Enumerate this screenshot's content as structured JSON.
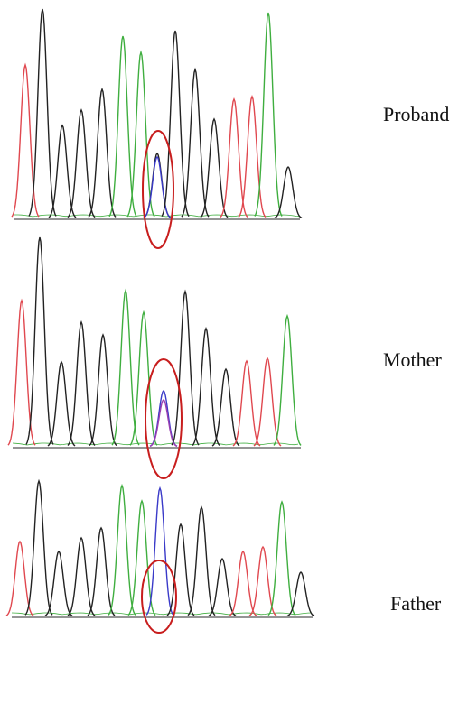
{
  "colors": {
    "base_a": "#3fae3f",
    "base_c": "#3a3ac8",
    "base_g": "#222222",
    "base_t": "#e0484f",
    "highlight": "#c81e1e",
    "axis": "#555555"
  },
  "panels": [
    {
      "label": "Proband",
      "icon": "chromatogram",
      "variant_peak": "heterozygous (black + blue overlapping peaks)"
    },
    {
      "label": "Mother",
      "icon": "chromatogram",
      "variant_peak": "heterozygous (blue + purple overlapping peaks)"
    },
    {
      "label": "Father",
      "icon": "chromatogram",
      "variant_peak": "homozygous (single blue peak)"
    }
  ]
}
